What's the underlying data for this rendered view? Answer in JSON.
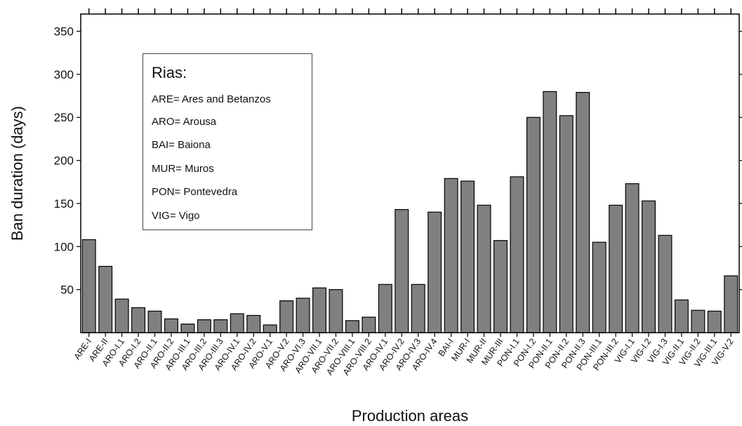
{
  "chart_data": {
    "type": "bar",
    "xlabel": "Production areas",
    "ylabel": "Ban duration (days)",
    "ylim": [
      0,
      370
    ],
    "yticks": [
      50,
      100,
      150,
      200,
      250,
      300,
      350
    ],
    "bar_color": "#808080",
    "categories": [
      "ARE-I",
      "ARE-II",
      "ARO-I.1",
      "ARO-I.2",
      "ARO-II.1",
      "ARO-II.2",
      "ARO-III.1",
      "ARO-III.2",
      "ARO-III.3",
      "ARO-IV.1",
      "ARO-IV.2",
      "ARO-V.1",
      "ARO-V.2",
      "ARO-VI.3",
      "ARO-VII.1",
      "ARO-VII.2",
      "ARO-VIII.1",
      "ARO-VIII.2",
      "ARO-IV.1",
      "ARO-IV.2",
      "ARO-IV.3",
      "ARO-IV.4",
      "BAI-I",
      "MUR-I",
      "MUR-II",
      "MUR-III",
      "PON-I.1",
      "PON-I.2",
      "PON-II.1",
      "PON-II.2",
      "PON-II.3",
      "PON-III.1",
      "PON-III.2",
      "VIG-I.1",
      "VIG-I.2",
      "VIG-I.3",
      "VIG-II.1",
      "VIG-II.2",
      "VIG-III.1",
      "VIG-V.2"
    ],
    "values": [
      108,
      77,
      39,
      29,
      25,
      16,
      10,
      15,
      15,
      22,
      20,
      9,
      37,
      40,
      52,
      50,
      14,
      18,
      56,
      143,
      56,
      140,
      179,
      176,
      148,
      107,
      181,
      250,
      280,
      252,
      279,
      105,
      148,
      173,
      153,
      113,
      38,
      26,
      25,
      66
    ]
  },
  "legend": {
    "title": "Rias:",
    "items": [
      "ARE= Ares and Betanzos",
      "ARO= Arousa",
      "BAI= Baiona",
      "MUR= Muros",
      "PON= Pontevedra",
      "VIG= Vigo"
    ]
  }
}
